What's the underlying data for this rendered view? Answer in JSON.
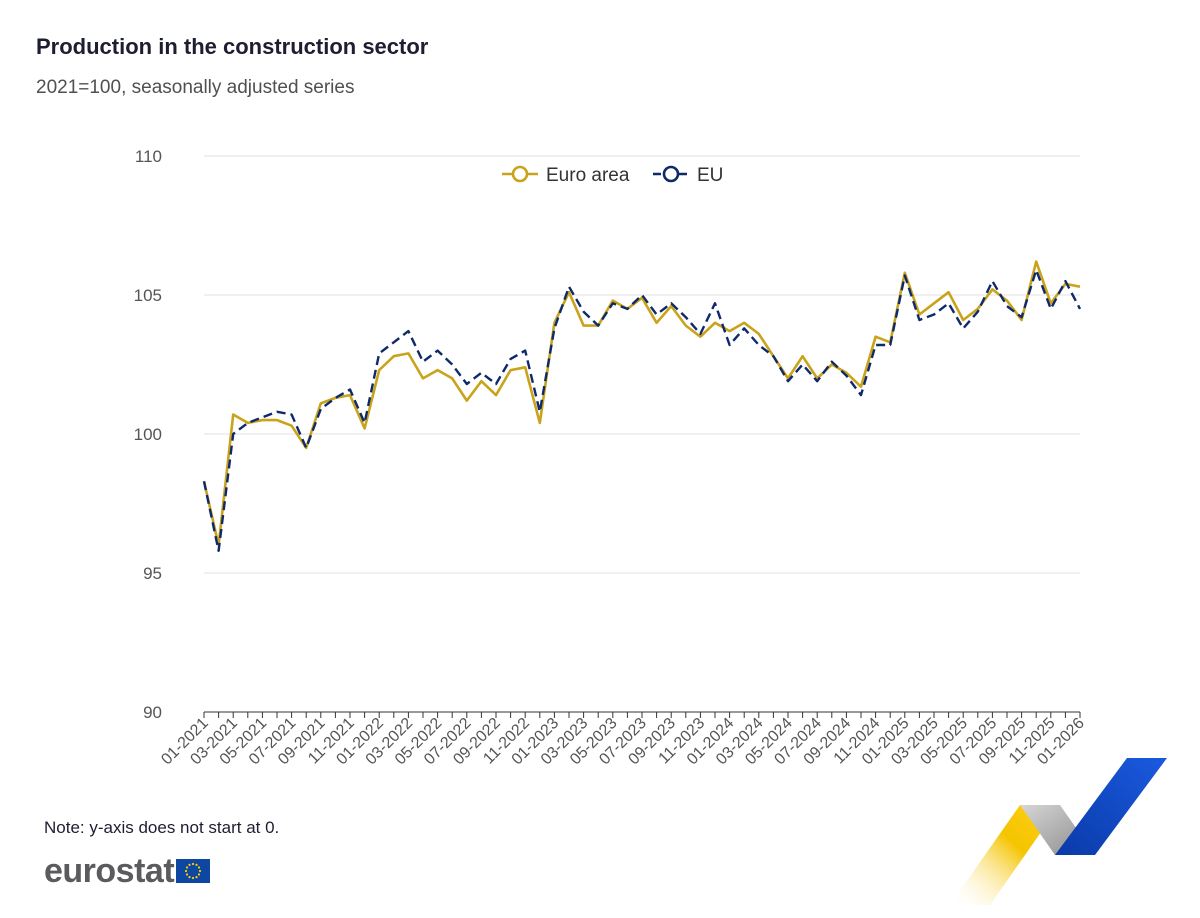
{
  "title": "Production in the construction sector",
  "subtitle": "2021=100, seasonally adjusted series",
  "note": "Note: y-axis does not start at 0.",
  "logo_text": "eurostat",
  "colors": {
    "euro_area": "#c9a31a",
    "eu": "#0e2a6b",
    "grid": "#e0e0e0",
    "axis_text": "#555555"
  },
  "chart_data": {
    "type": "line",
    "title": "Production in the construction sector",
    "subtitle": "2021=100, seasonally adjusted series",
    "ylim": [
      90,
      110
    ],
    "yticks": [
      90,
      95,
      100,
      105,
      110
    ],
    "grid": true,
    "legend": "top-center",
    "x": [
      "01-2021",
      "02-2021",
      "03-2021",
      "04-2021",
      "05-2021",
      "06-2021",
      "07-2021",
      "08-2021",
      "09-2021",
      "10-2021",
      "11-2021",
      "12-2021",
      "01-2022",
      "02-2022",
      "03-2022",
      "04-2022",
      "05-2022",
      "06-2022",
      "07-2022",
      "08-2022",
      "09-2022",
      "10-2022",
      "11-2022",
      "12-2022",
      "01-2023",
      "02-2023",
      "03-2023",
      "04-2023",
      "05-2023",
      "06-2023",
      "07-2023",
      "08-2023",
      "09-2023",
      "10-2023",
      "11-2023",
      "12-2023",
      "01-2024",
      "02-2024",
      "03-2024",
      "04-2024",
      "05-2024",
      "06-2024",
      "07-2024",
      "08-2024",
      "09-2024",
      "10-2024",
      "11-2024",
      "12-2024",
      "01-2025",
      "02-2025",
      "03-2025",
      "04-2025",
      "05-2025",
      "06-2025",
      "07-2025",
      "08-2025",
      "09-2025",
      "10-2025",
      "11-2025",
      "12-2025",
      "01-2026"
    ],
    "xtick_labels": [
      "01-2021",
      "03-2021",
      "05-2021",
      "07-2021",
      "09-2021",
      "11-2021",
      "01-2022",
      "03-2022",
      "05-2022",
      "07-2022",
      "09-2022",
      "11-2022",
      "01-2023",
      "03-2023",
      "05-2023",
      "07-2023",
      "09-2023",
      "11-2023",
      "01-2024",
      "03-2024",
      "05-2024",
      "07-2024",
      "09-2024",
      "11-2024",
      "01-2025",
      "03-2025",
      "05-2025",
      "07-2025",
      "09-2025",
      "11-2025",
      "01-2026"
    ],
    "series": [
      {
        "name": "Euro area",
        "values": [
          98.3,
          96.0,
          100.7,
          100.4,
          100.5,
          100.5,
          100.3,
          99.5,
          101.1,
          101.3,
          101.4,
          100.2,
          102.3,
          102.8,
          102.9,
          102.0,
          102.3,
          102.0,
          101.2,
          101.9,
          101.4,
          102.3,
          102.4,
          100.4,
          104.0,
          105.1,
          103.9,
          103.9,
          104.8,
          104.5,
          104.9,
          104.0,
          104.6,
          103.9,
          103.5,
          104.0,
          103.7,
          104.0,
          103.6,
          102.8,
          102.0,
          102.8,
          102.0,
          102.5,
          102.2,
          101.7,
          103.5,
          103.3,
          105.8,
          104.3,
          104.7,
          105.1,
          104.1,
          104.5,
          105.2,
          104.8,
          104.1,
          106.2,
          104.7,
          105.4,
          105.3
        ]
      },
      {
        "name": "EU",
        "values": [
          98.3,
          95.8,
          100.0,
          100.4,
          100.6,
          100.8,
          100.7,
          99.5,
          100.9,
          101.3,
          101.6,
          100.4,
          102.9,
          103.3,
          103.7,
          102.6,
          103.0,
          102.5,
          101.8,
          102.2,
          101.8,
          102.7,
          103.0,
          100.8,
          103.8,
          105.3,
          104.4,
          103.9,
          104.7,
          104.5,
          105.0,
          104.3,
          104.7,
          104.2,
          103.6,
          104.7,
          103.2,
          103.8,
          103.2,
          102.8,
          101.9,
          102.5,
          101.9,
          102.6,
          102.1,
          101.4,
          103.2,
          103.2,
          105.7,
          104.1,
          104.3,
          104.7,
          103.8,
          104.4,
          105.5,
          104.6,
          104.2,
          105.9,
          104.5,
          105.5,
          104.5
        ]
      }
    ]
  }
}
